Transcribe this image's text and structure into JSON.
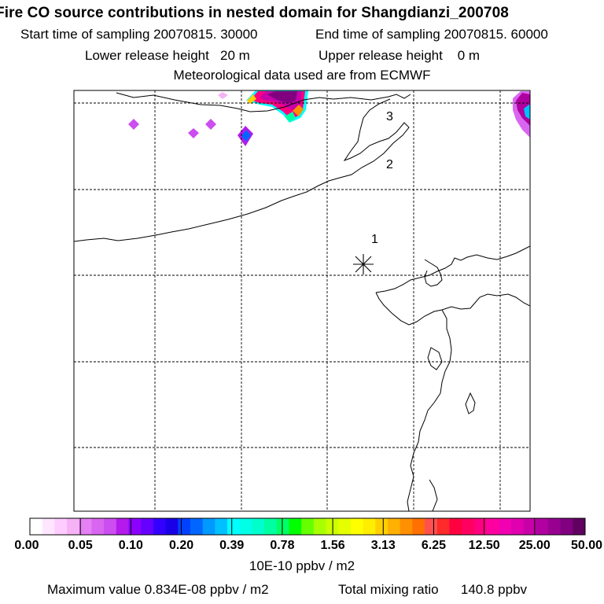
{
  "title": "Fire CO source contributions in nested domain for Shangdianzi_200708",
  "sampling": {
    "start_label": "Start time of sampling 20070815. 30000",
    "end_label": "End time of sampling 20070815. 60000"
  },
  "release": {
    "lower_label": "Lower release height   20 m",
    "upper_label": "Upper release height    0 m"
  },
  "meteo_label": "Meteorological data used are from ECMWF",
  "map": {
    "receptor_marker": "asterisk-icon",
    "point_labels": [
      {
        "text": "1"
      },
      {
        "text": "2"
      },
      {
        "text": "3"
      }
    ]
  },
  "legend": {
    "tick_labels": [
      "0.00",
      "0.05",
      "0.10",
      "0.20",
      "0.39",
      "0.78",
      "1.56",
      "3.13",
      "6.25",
      "12.50",
      "25.00",
      "50.00"
    ],
    "unit": "10E-10 ppbv / m2",
    "colors": [
      "#ffffff",
      "#ffe6ff",
      "#ffccff",
      "#f5b3f5",
      "#e680f5",
      "#d966f0",
      "#cc4df0",
      "#b31aeb",
      "#8c00ff",
      "#6600ff",
      "#3300ff",
      "#1a00e6",
      "#0040ff",
      "#0066ff",
      "#0099ff",
      "#00c0ff",
      "#00ffff",
      "#00ffe6",
      "#00ffcc",
      "#00ffa0",
      "#00ff66",
      "#00ff00",
      "#66ff00",
      "#a8ff00",
      "#ccff00",
      "#e6ff00",
      "#ffff00",
      "#ffee00",
      "#ffd000",
      "#ffb000",
      "#ff9000",
      "#ff7000",
      "#ff5050",
      "#ff2a2a",
      "#ff0040",
      "#ff0060",
      "#ff0080",
      "#ff00a0",
      "#f000b0",
      "#e000b0",
      "#c800a8",
      "#b000a0",
      "#980090",
      "#800080",
      "#600060"
    ]
  },
  "summary": {
    "max_label": "Maximum value  0.834E-08 ppbv / m2",
    "total_label": "Total mixing ratio      140.8 ppbv"
  }
}
